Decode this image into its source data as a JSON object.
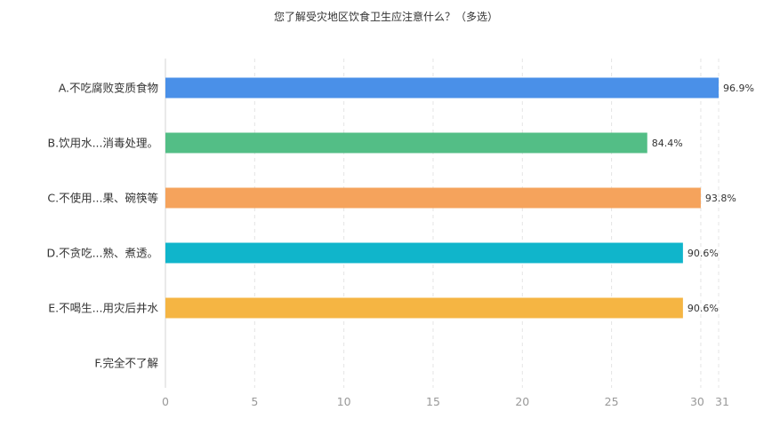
{
  "chart_data": {
    "type": "bar",
    "orientation": "horizontal",
    "title": "您了解受灾地区饮食卫生应注意什么？（多选）",
    "categories": [
      "A.不吃腐败变质食物",
      "B.饮用水...消毒处理。",
      "C.不使用...果、碗筷等",
      "D.不贪吃...熟、煮透。",
      "E.不喝生...用灾后井水",
      "F.完全不了解"
    ],
    "values": [
      31,
      27,
      30,
      29,
      29,
      0
    ],
    "value_labels": [
      "96.9%",
      "84.4%",
      "93.8%",
      "90.6%",
      "90.6%",
      ""
    ],
    "colors": [
      "#4a90e8",
      "#53be86",
      "#f5a35c",
      "#10b5cb",
      "#f5b543",
      "#a0a0a0"
    ],
    "x_ticks": [
      "0",
      "5",
      "10",
      "15",
      "20",
      "25",
      "30",
      "31"
    ],
    "xlim": [
      0,
      31
    ],
    "xlabel": "",
    "ylabel": "",
    "grid": true
  }
}
